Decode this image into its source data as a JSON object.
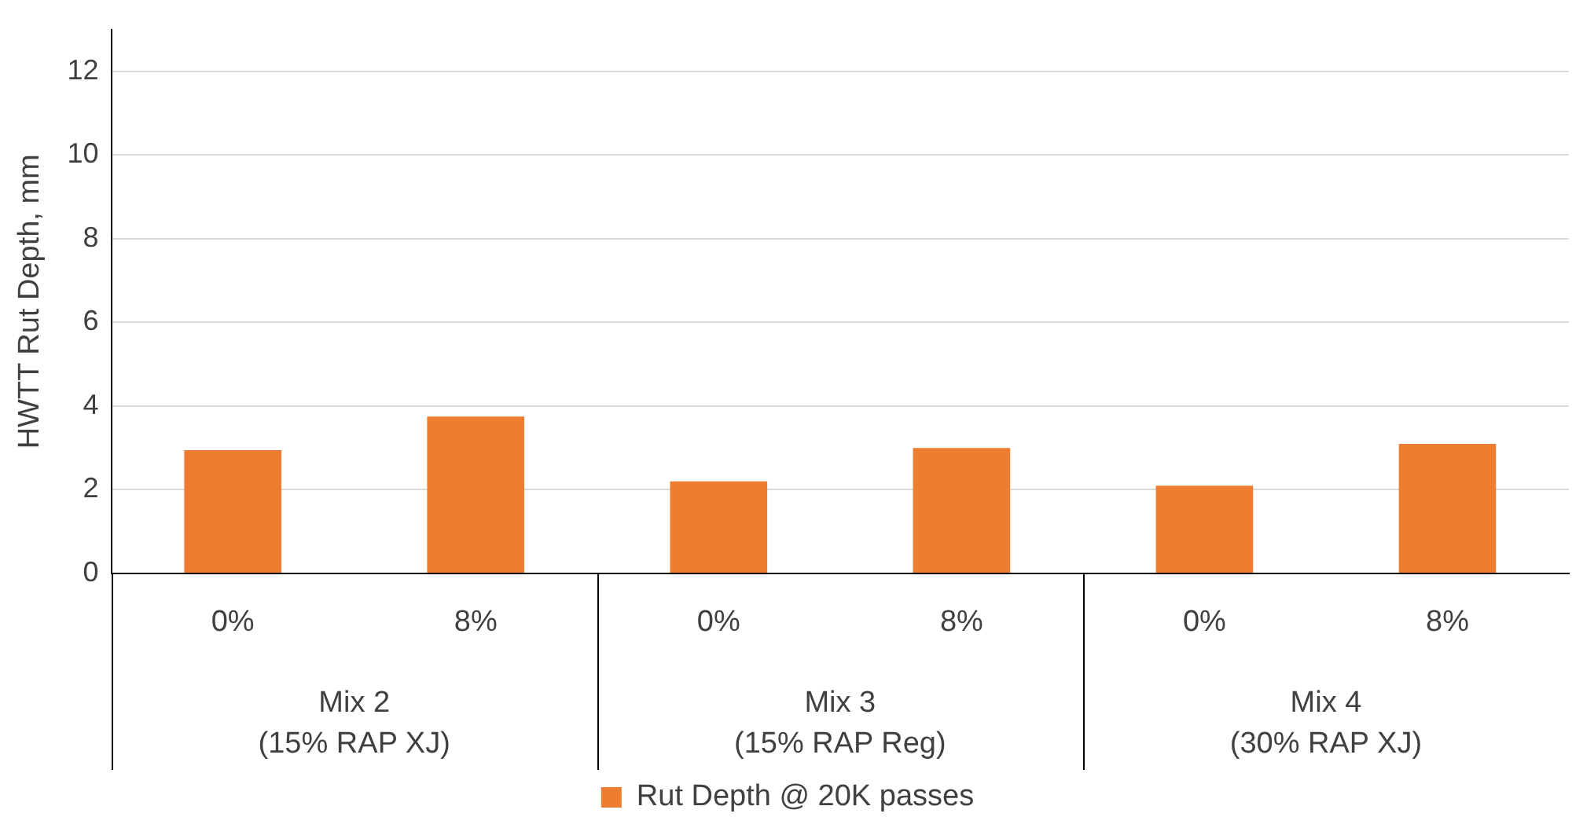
{
  "chart_data": {
    "type": "bar",
    "ylabel": "HWTT Rut Depth, mm",
    "categories": [
      "0%",
      "8%",
      "0%",
      "8%",
      "0%",
      "8%"
    ],
    "series": [
      {
        "name": "Rut Depth @ 20K passes",
        "color": "#ed7d31",
        "values": [
          2.95,
          3.75,
          2.2,
          3.0,
          2.1,
          3.1
        ]
      }
    ],
    "ylim": [
      0,
      13
    ],
    "yticks": [
      0,
      2,
      4,
      6,
      8,
      10,
      12
    ],
    "annotations": [
      "Mix 2\n(15% RAP XJ)",
      "Mix 3\n(15% RAP Reg)",
      "Mix 4\n(30% RAP XJ)"
    ],
    "grid": "y",
    "legend": "bottom"
  }
}
